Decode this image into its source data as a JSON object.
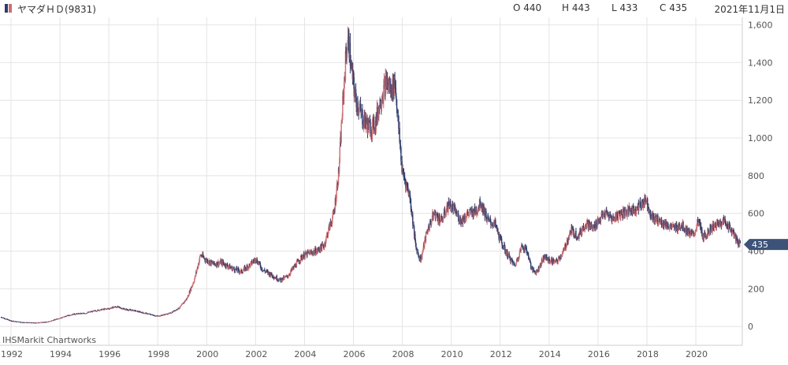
{
  "header": {
    "title": "ヤマダＨＤ(9831)",
    "open": "O 440",
    "high": "H 443",
    "low": "L 433",
    "close": "C 435",
    "date": "2021年11月1日"
  },
  "watermark": "IHSMarkit Chartworks",
  "last_price_label": "435",
  "colors": {
    "up": "#cc6f72",
    "down": "#2c3c6b",
    "grid": "#e4e4e4",
    "label_bg": "#3d5279"
  },
  "chart_data": {
    "type": "candlestick",
    "x_range": [
      1991.55,
      2021.9
    ],
    "ylim": [
      -100,
      1640
    ],
    "y_ticks": [
      {
        "value": 0,
        "label": "0"
      },
      {
        "value": 200,
        "label": "200"
      },
      {
        "value": 400,
        "label": "400"
      },
      {
        "value": 600,
        "label": "600"
      },
      {
        "value": 800,
        "label": "800"
      },
      {
        "value": 1000,
        "label": "1,000"
      },
      {
        "value": 1200,
        "label": "1,200"
      },
      {
        "value": 1400,
        "label": "1,400"
      },
      {
        "value": 1600,
        "label": "1,600"
      }
    ],
    "x_ticks": [
      "1992",
      "1994",
      "1996",
      "1998",
      "2000",
      "2002",
      "2004",
      "2006",
      "2008",
      "2010",
      "2012",
      "2014",
      "2016",
      "2018",
      "2020"
    ],
    "price_path": [
      [
        1991.6,
        50
      ],
      [
        1992.0,
        30
      ],
      [
        1992.5,
        22
      ],
      [
        1993.0,
        20
      ],
      [
        1993.5,
        25
      ],
      [
        1994.0,
        45
      ],
      [
        1994.5,
        65
      ],
      [
        1995.0,
        70
      ],
      [
        1995.5,
        85
      ],
      [
        1996.0,
        95
      ],
      [
        1996.3,
        105
      ],
      [
        1996.7,
        90
      ],
      [
        1997.0,
        85
      ],
      [
        1997.5,
        70
      ],
      [
        1998.0,
        55
      ],
      [
        1998.5,
        70
      ],
      [
        1998.9,
        100
      ],
      [
        1999.2,
        150
      ],
      [
        1999.5,
        250
      ],
      [
        1999.75,
        380
      ],
      [
        2000.0,
        350
      ],
      [
        2000.3,
        330
      ],
      [
        2000.6,
        340
      ],
      [
        2001.0,
        310
      ],
      [
        2001.4,
        290
      ],
      [
        2001.8,
        330
      ],
      [
        2002.0,
        360
      ],
      [
        2002.3,
        300
      ],
      [
        2002.7,
        270
      ],
      [
        2003.0,
        245
      ],
      [
        2003.3,
        265
      ],
      [
        2003.6,
        320
      ],
      [
        2003.9,
        370
      ],
      [
        2004.2,
        390
      ],
      [
        2004.5,
        400
      ],
      [
        2004.8,
        430
      ],
      [
        2005.0,
        520
      ],
      [
        2005.2,
        600
      ],
      [
        2005.4,
        820
      ],
      [
        2005.55,
        1150
      ],
      [
        2005.7,
        1450
      ],
      [
        2005.8,
        1530
      ],
      [
        2005.9,
        1380
      ],
      [
        2006.1,
        1200
      ],
      [
        2006.4,
        1100
      ],
      [
        2006.7,
        1050
      ],
      [
        2006.9,
        1080
      ],
      [
        2007.1,
        1200
      ],
      [
        2007.35,
        1300
      ],
      [
        2007.55,
        1250
      ],
      [
        2007.7,
        1300
      ],
      [
        2007.85,
        1050
      ],
      [
        2008.0,
        820
      ],
      [
        2008.3,
        700
      ],
      [
        2008.55,
        420
      ],
      [
        2008.75,
        350
      ],
      [
        2009.0,
        500
      ],
      [
        2009.3,
        600
      ],
      [
        2009.6,
        560
      ],
      [
        2009.9,
        650
      ],
      [
        2010.1,
        620
      ],
      [
        2010.4,
        560
      ],
      [
        2010.7,
        600
      ],
      [
        2011.0,
        610
      ],
      [
        2011.2,
        660
      ],
      [
        2011.5,
        560
      ],
      [
        2011.8,
        540
      ],
      [
        2012.0,
        460
      ],
      [
        2012.3,
        380
      ],
      [
        2012.6,
        320
      ],
      [
        2012.9,
        430
      ],
      [
        2013.1,
        400
      ],
      [
        2013.3,
        300
      ],
      [
        2013.5,
        290
      ],
      [
        2013.8,
        370
      ],
      [
        2014.0,
        350
      ],
      [
        2014.3,
        340
      ],
      [
        2014.6,
        400
      ],
      [
        2014.9,
        510
      ],
      [
        2015.2,
        480
      ],
      [
        2015.5,
        550
      ],
      [
        2015.8,
        520
      ],
      [
        2016.0,
        560
      ],
      [
        2016.3,
        600
      ],
      [
        2016.6,
        570
      ],
      [
        2016.9,
        600
      ],
      [
        2017.2,
        610
      ],
      [
        2017.5,
        620
      ],
      [
        2017.8,
        650
      ],
      [
        2017.95,
        680
      ],
      [
        2018.2,
        580
      ],
      [
        2018.5,
        560
      ],
      [
        2018.8,
        540
      ],
      [
        2019.1,
        520
      ],
      [
        2019.4,
        540
      ],
      [
        2019.7,
        500
      ],
      [
        2019.9,
        480
      ],
      [
        2020.1,
        560
      ],
      [
        2020.3,
        470
      ],
      [
        2020.6,
        520
      ],
      [
        2020.9,
        540
      ],
      [
        2021.1,
        560
      ],
      [
        2021.3,
        540
      ],
      [
        2021.5,
        500
      ],
      [
        2021.7,
        450
      ],
      [
        2021.83,
        435
      ]
    ],
    "last_close": 435
  }
}
